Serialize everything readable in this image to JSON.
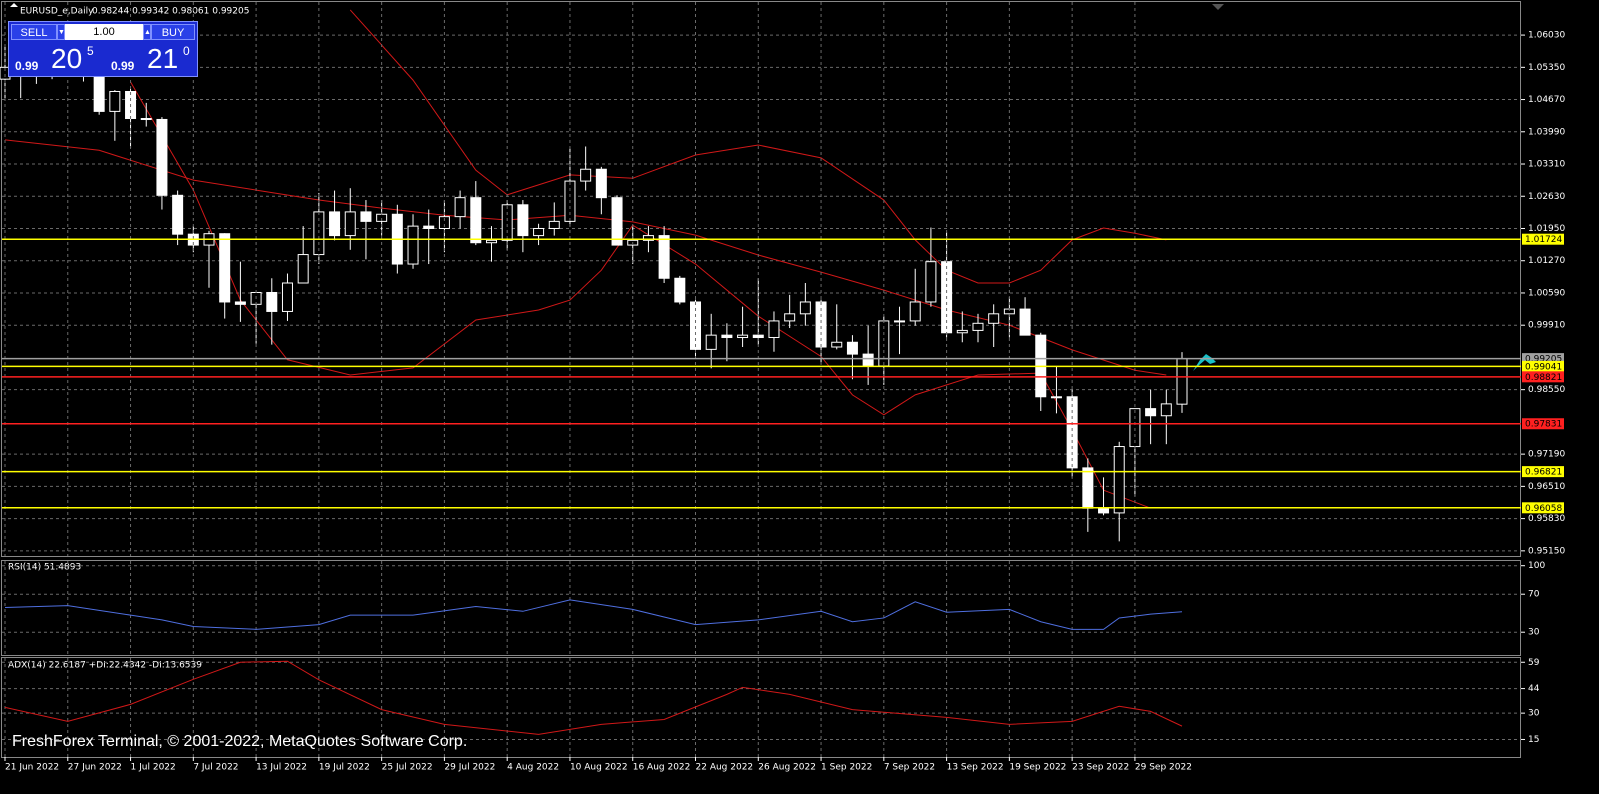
{
  "header": {
    "symbol": "EURUSD_e,Daily",
    "ohlc": "0.98244 0.99342 0.98061 0.99205"
  },
  "trade_panel": {
    "sell": "SELL",
    "buy": "BUY",
    "lot": "1.00",
    "sell_price": {
      "big": "0.99",
      "pips": "20",
      "frac": "5"
    },
    "buy_price": {
      "big": "0.99",
      "pips": "21",
      "frac": "0"
    }
  },
  "chart_data": {
    "type": "candlestick",
    "categories": [
      "21 Jun 2022",
      null,
      null,
      null,
      "27 Jun 2022",
      null,
      null,
      null,
      "1 Jul 2022",
      null,
      null,
      null,
      "7 Jul 2022",
      null,
      null,
      null,
      "13 Jul 2022",
      null,
      null,
      null,
      "19 Jul 2022",
      null,
      null,
      null,
      "25 Jul 2022",
      null,
      null,
      null,
      "29 Jul 2022",
      null,
      null,
      null,
      "4 Aug 2022",
      null,
      null,
      null,
      "10 Aug 2022",
      null,
      null,
      null,
      "16 Aug 2022",
      null,
      null,
      null,
      "22 Aug 2022",
      null,
      null,
      null,
      "26 Aug 2022",
      null,
      null,
      null,
      "1 Sep 2022",
      null,
      null,
      null,
      "7 Sep 2022",
      null,
      null,
      null,
      "13 Sep 2022",
      null,
      null,
      null,
      "19 Sep 2022",
      null,
      null,
      null,
      "23 Sep 2022",
      null,
      null,
      null,
      "29 Sep 2022",
      null,
      null,
      null
    ],
    "ohlc": [
      [
        1.051,
        1.0583,
        1.047,
        1.0535
      ],
      [
        1.0535,
        1.0606,
        1.047,
        1.0567
      ],
      [
        1.0567,
        1.061,
        1.05,
        1.052
      ],
      [
        1.052,
        1.057,
        1.051,
        1.0555
      ],
      [
        1.0555,
        1.0615,
        1.054,
        1.0583
      ],
      [
        1.0583,
        1.0605,
        1.0505,
        1.0517
      ],
      [
        1.0517,
        1.053,
        1.0435,
        1.0442
      ],
      [
        1.0442,
        1.0487,
        1.038,
        1.0484
      ],
      [
        1.0484,
        1.049,
        1.0365,
        1.0427
      ],
      [
        1.0427,
        1.046,
        1.041,
        1.0425
      ],
      [
        1.0425,
        1.043,
        1.0235,
        1.0265
      ],
      [
        1.0265,
        1.0275,
        1.016,
        1.0183
      ],
      [
        1.0183,
        1.02,
        1.0145,
        1.016
      ],
      [
        1.016,
        1.019,
        1.007,
        1.0184
      ],
      [
        1.0184,
        1.0185,
        1.0005,
        1.004
      ],
      [
        1.004,
        1.0125,
        0.9998,
        1.0035
      ],
      [
        1.0035,
        1.006,
        0.9952,
        1.006
      ],
      [
        1.006,
        1.009,
        0.995,
        1.002
      ],
      [
        1.002,
        1.01,
        1.0,
        1.008
      ],
      [
        1.008,
        1.02,
        1.008,
        1.014
      ],
      [
        1.014,
        1.027,
        1.012,
        1.023
      ],
      [
        1.023,
        1.0275,
        1.017,
        1.018
      ],
      [
        1.018,
        1.028,
        1.015,
        1.023
      ],
      [
        1.023,
        1.0255,
        1.013,
        1.021
      ],
      [
        1.021,
        1.0255,
        1.018,
        1.0225
      ],
      [
        1.0225,
        1.0245,
        1.01,
        1.012
      ],
      [
        1.012,
        1.0225,
        1.011,
        1.02
      ],
      [
        1.02,
        1.0235,
        1.012,
        1.0195
      ],
      [
        1.0195,
        1.0255,
        1.0145,
        1.022
      ],
      [
        1.022,
        1.0275,
        1.0195,
        1.026
      ],
      [
        1.026,
        1.0295,
        1.016,
        1.0165
      ],
      [
        1.0165,
        1.02,
        1.0125,
        1.017
      ],
      [
        1.017,
        1.0255,
        1.015,
        1.0245
      ],
      [
        1.0245,
        1.0255,
        1.0145,
        1.018
      ],
      [
        1.018,
        1.0205,
        1.016,
        1.0195
      ],
      [
        1.0195,
        1.025,
        1.018,
        1.021
      ],
      [
        1.021,
        1.0365,
        1.02,
        1.0295
      ],
      [
        1.0295,
        1.0368,
        1.0275,
        1.032
      ],
      [
        1.032,
        1.0325,
        1.0225,
        1.026
      ],
      [
        1.026,
        1.0265,
        1.016,
        1.016
      ],
      [
        1.016,
        1.02,
        1.012,
        1.017
      ],
      [
        1.017,
        1.02,
        1.0145,
        1.018
      ],
      [
        1.018,
        1.02,
        1.008,
        1.009
      ],
      [
        1.009,
        1.0095,
        1.0035,
        1.004
      ],
      [
        1.004,
        1.0045,
        0.9925,
        0.994
      ],
      [
        0.994,
        1.0015,
        0.99,
        0.997
      ],
      [
        0.997,
        0.9995,
        0.9915,
        0.9965
      ],
      [
        0.9965,
        1.003,
        0.9945,
        0.997
      ],
      [
        0.997,
        1.009,
        0.995,
        0.9965
      ],
      [
        0.9965,
        1.002,
        0.9935,
        1.0
      ],
      [
        1.0,
        1.0055,
        0.9985,
        1.0015
      ],
      [
        1.0015,
        1.008,
        0.999,
        1.004
      ],
      [
        1.004,
        1.0045,
        0.991,
        0.9945
      ],
      [
        0.9945,
        1.0035,
        0.994,
        0.9955
      ],
      [
        0.9955,
        0.997,
        0.9877,
        0.993
      ],
      [
        0.993,
        0.999,
        0.9865,
        0.9905
      ],
      [
        0.9905,
        1.001,
        0.9865,
        1.0
      ],
      [
        1.0,
        1.003,
        0.993,
        1.0
      ],
      [
        1.0,
        1.011,
        0.999,
        1.004
      ],
      [
        1.004,
        1.0197,
        1.003,
        1.0125
      ],
      [
        1.0125,
        1.0187,
        0.9965,
        0.9975
      ],
      [
        0.9975,
        1.002,
        0.9955,
        0.998
      ],
      [
        0.998,
        1.0015,
        0.9955,
        0.9995
      ],
      [
        0.9995,
        1.0035,
        0.9945,
        1.0015
      ],
      [
        1.0015,
        1.005,
        0.9965,
        1.0025
      ],
      [
        1.0025,
        1.005,
        0.997,
        0.997
      ],
      [
        0.997,
        0.9975,
        0.981,
        0.984
      ],
      [
        0.984,
        0.9905,
        0.9805,
        0.984
      ],
      [
        0.984,
        0.9855,
        0.967,
        0.969
      ],
      [
        0.969,
        0.971,
        0.9555,
        0.9605
      ],
      [
        0.9605,
        0.967,
        0.959,
        0.9595
      ],
      [
        0.9595,
        0.9745,
        0.9535,
        0.9735
      ],
      [
        0.9735,
        0.9815,
        0.963,
        0.9815
      ],
      [
        0.9815,
        0.9855,
        0.974,
        0.98
      ],
      [
        0.98,
        0.9855,
        0.974,
        0.9825
      ],
      [
        0.98244,
        0.99342,
        0.98061,
        0.99205
      ]
    ],
    "ylim": [
      0.9502,
      1.0677
    ],
    "yticks": [
      {
        "value": 1.0603,
        "label": "1.06030"
      },
      {
        "value": 1.0535,
        "label": "1.05350"
      },
      {
        "value": 1.0467,
        "label": "1.04670"
      },
      {
        "value": 1.0399,
        "label": "1.03990"
      },
      {
        "value": 1.0331,
        "label": "1.03310"
      },
      {
        "value": 1.0263,
        "label": "1.02630"
      },
      {
        "value": 1.0195,
        "label": "1.01950"
      },
      {
        "value": 1.0127,
        "label": "1.01270"
      },
      {
        "value": 1.0059,
        "label": "1.00590"
      },
      {
        "value": 0.9991,
        "label": "0.99910"
      },
      {
        "value": 0.9855,
        "label": "0.98550"
      },
      {
        "value": 0.9719,
        "label": "0.97190"
      },
      {
        "value": 0.9651,
        "label": "0.96510"
      },
      {
        "value": 0.9583,
        "label": "0.95830"
      },
      {
        "value": 0.9515,
        "label": "0.95150"
      }
    ],
    "grid": true,
    "bull_color": "#000000",
    "bear_color": "#ffffff",
    "band_color": "#d01818",
    "upper_band": {
      "x": [
        22,
        26,
        30,
        32,
        36,
        40,
        44,
        48,
        52,
        56,
        58,
        60,
        62,
        64,
        66,
        68,
        70,
        72,
        74
      ],
      "values": [
        1.0656,
        1.0508,
        1.0318,
        1.0266,
        1.0308,
        1.0301,
        1.035,
        1.0371,
        1.0344,
        1.0255,
        1.0171,
        1.0107,
        1.008,
        1.008,
        1.0107,
        1.0171,
        1.0196,
        1.0185,
        1.0171
      ]
    },
    "middle_band": {
      "x": [
        0,
        6,
        12,
        16,
        20,
        24,
        28,
        32,
        36,
        40,
        44,
        48,
        52,
        56,
        60,
        64,
        68,
        72,
        74
      ],
      "values": [
        1.0382,
        1.036,
        1.0297,
        1.0276,
        1.0255,
        1.0238,
        1.0223,
        1.0213,
        1.0223,
        1.0209,
        1.0181,
        1.0139,
        1.0103,
        1.0065,
        1.0023,
        0.9991,
        0.9939,
        0.9896,
        0.9886
      ]
    },
    "lower_band": {
      "x": [
        8,
        12,
        15,
        18,
        22,
        26,
        30,
        34,
        36,
        38,
        40,
        44,
        48,
        52,
        54,
        56,
        58,
        62,
        66,
        68,
        70,
        73
      ],
      "values": [
        1.0504,
        1.0276,
        1.0044,
        0.9918,
        0.9886,
        0.9901,
        1.0002,
        1.0023,
        1.0044,
        1.0107,
        1.0202,
        1.012,
        1.001,
        0.9925,
        0.9844,
        0.9802,
        0.9844,
        0.9886,
        0.989,
        0.977,
        0.9643,
        0.9605
      ]
    },
    "levels": [
      {
        "value": 1.01724,
        "label": "1.01724",
        "color": "#ffff00"
      },
      {
        "value": 0.99205,
        "label": "0.99205",
        "color": "#a0a0a0"
      },
      {
        "value": 0.99041,
        "label": "0.99041",
        "color": "#ffff00"
      },
      {
        "value": 0.98821,
        "label": "0.98821",
        "color": "#ff2020"
      },
      {
        "value": 0.97831,
        "label": "0.97831",
        "color": "#ff2020"
      },
      {
        "value": 0.96821,
        "label": "0.96821",
        "color": "#ffff00"
      },
      {
        "value": 0.96058,
        "label": "0.96058",
        "color": "#ffff00"
      }
    ]
  },
  "rsi": {
    "title": "RSI(14) 51.4893",
    "ylim": [
      6,
      106
    ],
    "yticks": [
      100,
      70,
      30
    ],
    "color": "#4f6fe0",
    "x": [
      0,
      4,
      8,
      10,
      12,
      16,
      20,
      22,
      26,
      30,
      33,
      36,
      40,
      44,
      48,
      52,
      54,
      56,
      58,
      60,
      64,
      66,
      68,
      70,
      71,
      73,
      75
    ],
    "values": [
      56,
      58,
      48,
      43,
      36,
      33,
      38,
      48,
      48,
      57,
      52,
      64,
      54,
      38,
      43,
      52,
      41,
      45,
      62,
      51,
      54,
      41,
      33,
      33,
      45,
      49,
      51.5
    ]
  },
  "adx": {
    "title": "ADX(14) 22.6187 +DI:22.4342 -DI:13.6539",
    "ylim": [
      5,
      62
    ],
    "yticks": [
      59,
      44,
      30,
      15
    ],
    "color": "#d01818",
    "x": [
      0,
      4,
      8,
      12,
      15,
      18,
      20,
      24,
      28,
      34,
      38,
      42,
      46,
      47,
      50,
      54,
      60,
      64,
      68,
      71,
      73,
      75
    ],
    "values": [
      33.3,
      25.3,
      35,
      49.3,
      59,
      59.6,
      49,
      32,
      23.6,
      17.9,
      23.6,
      26.4,
      40.7,
      44.7,
      40.7,
      32,
      27.6,
      23.6,
      25.3,
      33.9,
      31,
      22.6
    ]
  },
  "watermark": "FreshForex Terminal, © 2001-2022, MetaQuotes Software Corp."
}
